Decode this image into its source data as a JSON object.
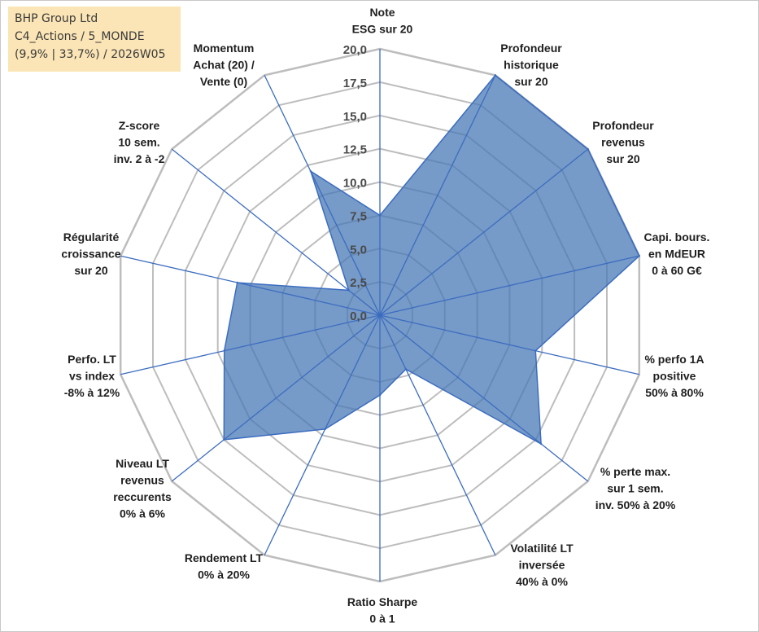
{
  "info": {
    "company": "BHP Group Ltd",
    "portfolio": "C4_Actions / 5_MONDE",
    "stats": "(9,9% | 33,7%) / 2026W05"
  },
  "colors": {
    "fill": "#4a7ab5",
    "stroke": "#3b6cc0",
    "grid": "#bdbdbd",
    "info_bg": "#fbe5b6"
  },
  "chart_data": {
    "type": "radar",
    "title": "",
    "rmin": 0,
    "rmax": 20,
    "ticks": [
      "0,0",
      "2,5",
      "5,0",
      "7,5",
      "10,0",
      "12,5",
      "15,0",
      "17,5",
      "20,0"
    ],
    "axes": [
      {
        "label": [
          "Note",
          "ESG sur 20"
        ],
        "value": 7.5
      },
      {
        "label": [
          "Profondeur",
          "historique",
          "sur 20"
        ],
        "value": 20
      },
      {
        "label": [
          "Profondeur",
          "revenus",
          "sur 20"
        ],
        "value": 20
      },
      {
        "label": [
          "Capi. bours.",
          "en MdEUR",
          "0 à 60 G€"
        ],
        "value": 20
      },
      {
        "label": [
          "% perfo 1A",
          "positive",
          "50% à 80%"
        ],
        "value": 12
      },
      {
        "label": [
          "% perte max.",
          "sur 1 sem.",
          "inv. 50% à 20%"
        ],
        "value": 15.5
      },
      {
        "label": [
          "Volatilité LT",
          "inversée",
          "40% à 0%"
        ],
        "value": 4.5
      },
      {
        "label": [
          "Ratio Sharpe",
          "0 à 1"
        ],
        "value": 6
      },
      {
        "label": [
          "Rendement LT",
          "0% à 20%"
        ],
        "value": 9.5
      },
      {
        "label": [
          "Niveau LT",
          "revenus",
          "reccurents",
          "0% à 6%"
        ],
        "value": 15
      },
      {
        "label": [
          "Perfo. LT",
          "vs index",
          "-8% à 12%"
        ],
        "value": 12
      },
      {
        "label": [
          "Régularité",
          "croissance",
          "sur 20"
        ],
        "value": 11
      },
      {
        "label": [
          "Z-score",
          "10 sem.",
          "inv. 2 à -2"
        ],
        "value": 3
      },
      {
        "label": [
          "Momentum",
          "Achat (20) /",
          "Vente (0)"
        ],
        "value": 12
      }
    ]
  }
}
